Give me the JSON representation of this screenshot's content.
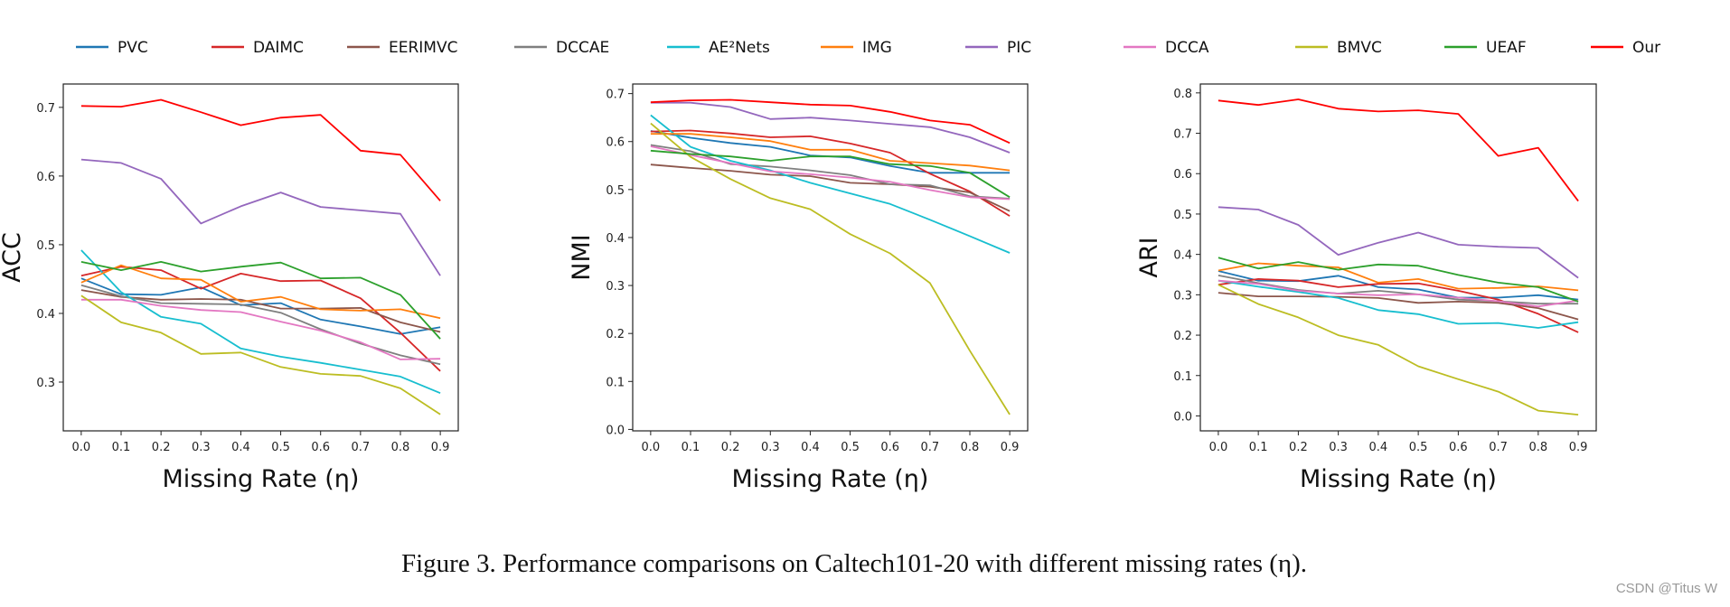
{
  "legend": [
    {
      "name": "PVC",
      "color": "#1f77b4"
    },
    {
      "name": "DAIMC",
      "color": "#d62728"
    },
    {
      "name": "EERIMVC",
      "color": "#8c564b"
    },
    {
      "name": "DCCAE",
      "color": "#7f7f7f"
    },
    {
      "name": "AE²Nets",
      "color": "#17becf"
    },
    {
      "name": "IMG",
      "color": "#ff7f0e"
    },
    {
      "name": "PIC",
      "color": "#9467bd"
    },
    {
      "name": "DCCA",
      "color": "#e377c2"
    },
    {
      "name": "BMVC",
      "color": "#bcbd22"
    },
    {
      "name": "UEAF",
      "color": "#2ca02c"
    },
    {
      "name": "Our",
      "color": "#ff0000"
    }
  ],
  "caption": "Figure 3.  Performance comparisons on Caltech101-20 with different missing rates (η).",
  "watermark": "CSDN @Titus W",
  "chart_data": [
    {
      "type": "line",
      "xlabel": "Missing Rate (η)",
      "ylabel": "ACC",
      "x": [
        0.0,
        0.1,
        0.2,
        0.3,
        0.4,
        0.5,
        0.6,
        0.7,
        0.8,
        0.9
      ],
      "xticks": [
        "0.0",
        "0.1",
        "0.2",
        "0.3",
        "0.4",
        "0.5",
        "0.6",
        "0.7",
        "0.8",
        "0.9"
      ],
      "yticks": [
        "0.3",
        "0.4",
        "0.5",
        "0.6",
        "0.7"
      ],
      "xlim": [
        -0.045,
        0.945
      ],
      "ylim": [
        0.229,
        0.734
      ],
      "grid": false,
      "series": [
        {
          "name": "PVC",
          "values": [
            0.451,
            0.428,
            0.427,
            0.438,
            0.412,
            0.415,
            0.391,
            0.381,
            0.37,
            0.38
          ]
        },
        {
          "name": "DAIMC",
          "values": [
            0.455,
            0.468,
            0.463,
            0.436,
            0.458,
            0.447,
            0.448,
            0.422,
            0.372,
            0.316
          ]
        },
        {
          "name": "EERIMVC",
          "values": [
            0.434,
            0.424,
            0.42,
            0.421,
            0.42,
            0.407,
            0.407,
            0.408,
            0.387,
            0.373
          ]
        },
        {
          "name": "DCCAE",
          "values": [
            0.441,
            0.425,
            0.415,
            0.414,
            0.413,
            0.401,
            0.377,
            0.356,
            0.339,
            0.326
          ]
        },
        {
          "name": "AE²Nets",
          "values": [
            0.492,
            0.431,
            0.395,
            0.385,
            0.349,
            0.337,
            0.328,
            0.318,
            0.308,
            0.284
          ]
        },
        {
          "name": "IMG",
          "values": [
            0.445,
            0.47,
            0.451,
            0.449,
            0.417,
            0.424,
            0.406,
            0.404,
            0.406,
            0.393
          ]
        },
        {
          "name": "PIC",
          "values": [
            0.624,
            0.619,
            0.596,
            0.531,
            0.556,
            0.576,
            0.555,
            0.55,
            0.545,
            0.455
          ]
        },
        {
          "name": "DCCA",
          "values": [
            0.42,
            0.42,
            0.411,
            0.405,
            0.402,
            0.388,
            0.375,
            0.358,
            0.333,
            0.334
          ]
        },
        {
          "name": "BMVC",
          "values": [
            0.426,
            0.387,
            0.372,
            0.341,
            0.343,
            0.322,
            0.312,
            0.309,
            0.291,
            0.253
          ]
        },
        {
          "name": "UEAF",
          "values": [
            0.475,
            0.463,
            0.475,
            0.461,
            0.468,
            0.474,
            0.451,
            0.452,
            0.427,
            0.363
          ]
        },
        {
          "name": "Our",
          "values": [
            0.702,
            0.701,
            0.711,
            0.693,
            0.674,
            0.685,
            0.689,
            0.637,
            0.631,
            0.564
          ]
        }
      ]
    },
    {
      "type": "line",
      "xlabel": "Missing Rate (η)",
      "ylabel": "NMI",
      "x": [
        0.0,
        0.1,
        0.2,
        0.3,
        0.4,
        0.5,
        0.6,
        0.7,
        0.8,
        0.9
      ],
      "xticks": [
        "0.0",
        "0.1",
        "0.2",
        "0.3",
        "0.4",
        "0.5",
        "0.6",
        "0.7",
        "0.8",
        "0.9"
      ],
      "yticks": [
        "0.0",
        "0.1",
        "0.2",
        "0.3",
        "0.4",
        "0.5",
        "0.6",
        "0.7"
      ],
      "xlim": [
        -0.045,
        0.945
      ],
      "ylim": [
        -0.003,
        0.72
      ],
      "grid": false,
      "series": [
        {
          "name": "PVC",
          "values": [
            0.622,
            0.608,
            0.597,
            0.589,
            0.571,
            0.567,
            0.549,
            0.535,
            0.535,
            0.535
          ]
        },
        {
          "name": "DAIMC",
          "values": [
            0.621,
            0.623,
            0.617,
            0.609,
            0.611,
            0.596,
            0.577,
            0.533,
            0.496,
            0.445
          ]
        },
        {
          "name": "EERIMVC",
          "values": [
            0.552,
            0.545,
            0.539,
            0.531,
            0.528,
            0.514,
            0.511,
            0.506,
            0.494,
            0.455
          ]
        },
        {
          "name": "DCCAE",
          "values": [
            0.593,
            0.58,
            0.553,
            0.548,
            0.54,
            0.53,
            0.511,
            0.509,
            0.486,
            0.481
          ]
        },
        {
          "name": "AE²Nets",
          "values": [
            0.655,
            0.589,
            0.56,
            0.54,
            0.514,
            0.492,
            0.47,
            0.437,
            0.403,
            0.368
          ]
        },
        {
          "name": "IMG",
          "values": [
            0.616,
            0.616,
            0.609,
            0.601,
            0.583,
            0.583,
            0.56,
            0.555,
            0.55,
            0.54
          ]
        },
        {
          "name": "PIC",
          "values": [
            0.681,
            0.681,
            0.672,
            0.647,
            0.65,
            0.644,
            0.637,
            0.63,
            0.609,
            0.577
          ]
        },
        {
          "name": "DCCA",
          "values": [
            0.59,
            0.572,
            0.555,
            0.538,
            0.532,
            0.525,
            0.516,
            0.499,
            0.484,
            0.48
          ]
        },
        {
          "name": "BMVC",
          "values": [
            0.638,
            0.568,
            0.522,
            0.482,
            0.459,
            0.407,
            0.367,
            0.305,
            0.164,
            0.031
          ]
        },
        {
          "name": "UEAF",
          "values": [
            0.581,
            0.574,
            0.569,
            0.56,
            0.569,
            0.569,
            0.553,
            0.549,
            0.535,
            0.484
          ]
        },
        {
          "name": "Our",
          "values": [
            0.682,
            0.686,
            0.687,
            0.682,
            0.677,
            0.675,
            0.662,
            0.644,
            0.635,
            0.597
          ]
        }
      ]
    },
    {
      "type": "line",
      "xlabel": "Missing Rate (η)",
      "ylabel": "ARI",
      "x": [
        0.0,
        0.1,
        0.2,
        0.3,
        0.4,
        0.5,
        0.6,
        0.7,
        0.8,
        0.9
      ],
      "xticks": [
        "0.0",
        "0.1",
        "0.2",
        "0.3",
        "0.4",
        "0.5",
        "0.6",
        "0.7",
        "0.8",
        "0.9"
      ],
      "yticks": [
        "0.0",
        "0.1",
        "0.2",
        "0.3",
        "0.4",
        "0.5",
        "0.6",
        "0.7",
        "0.8"
      ],
      "xlim": [
        -0.045,
        0.945
      ],
      "ylim": [
        -0.037,
        0.822
      ],
      "grid": false,
      "series": [
        {
          "name": "PVC",
          "values": [
            0.359,
            0.335,
            0.334,
            0.347,
            0.319,
            0.313,
            0.293,
            0.293,
            0.299,
            0.288
          ]
        },
        {
          "name": "DAIMC",
          "values": [
            0.325,
            0.339,
            0.335,
            0.319,
            0.327,
            0.328,
            0.31,
            0.288,
            0.253,
            0.207
          ]
        },
        {
          "name": "EERIMVC",
          "values": [
            0.305,
            0.296,
            0.296,
            0.295,
            0.292,
            0.28,
            0.283,
            0.28,
            0.267,
            0.239
          ]
        },
        {
          "name": "DCCAE",
          "values": [
            0.348,
            0.329,
            0.312,
            0.303,
            0.31,
            0.301,
            0.288,
            0.284,
            0.278,
            0.278
          ]
        },
        {
          "name": "AE²Nets",
          "values": [
            0.335,
            0.32,
            0.307,
            0.292,
            0.262,
            0.252,
            0.228,
            0.23,
            0.218,
            0.232
          ]
        },
        {
          "name": "IMG",
          "values": [
            0.36,
            0.378,
            0.372,
            0.368,
            0.33,
            0.339,
            0.315,
            0.317,
            0.321,
            0.311
          ]
        },
        {
          "name": "PIC",
          "values": [
            0.517,
            0.511,
            0.473,
            0.399,
            0.429,
            0.454,
            0.424,
            0.419,
            0.416,
            0.342
          ]
        },
        {
          "name": "DCCA",
          "values": [
            0.335,
            0.327,
            0.31,
            0.303,
            0.299,
            0.301,
            0.293,
            0.284,
            0.271,
            0.286
          ]
        },
        {
          "name": "BMVC",
          "values": [
            0.325,
            0.277,
            0.244,
            0.2,
            0.176,
            0.123,
            0.091,
            0.06,
            0.013,
            0.003
          ]
        },
        {
          "name": "UEAF",
          "values": [
            0.392,
            0.365,
            0.381,
            0.362,
            0.375,
            0.372,
            0.349,
            0.33,
            0.319,
            0.283
          ]
        },
        {
          "name": "Our",
          "values": [
            0.781,
            0.77,
            0.784,
            0.761,
            0.754,
            0.757,
            0.748,
            0.644,
            0.664,
            0.532
          ]
        }
      ]
    }
  ]
}
